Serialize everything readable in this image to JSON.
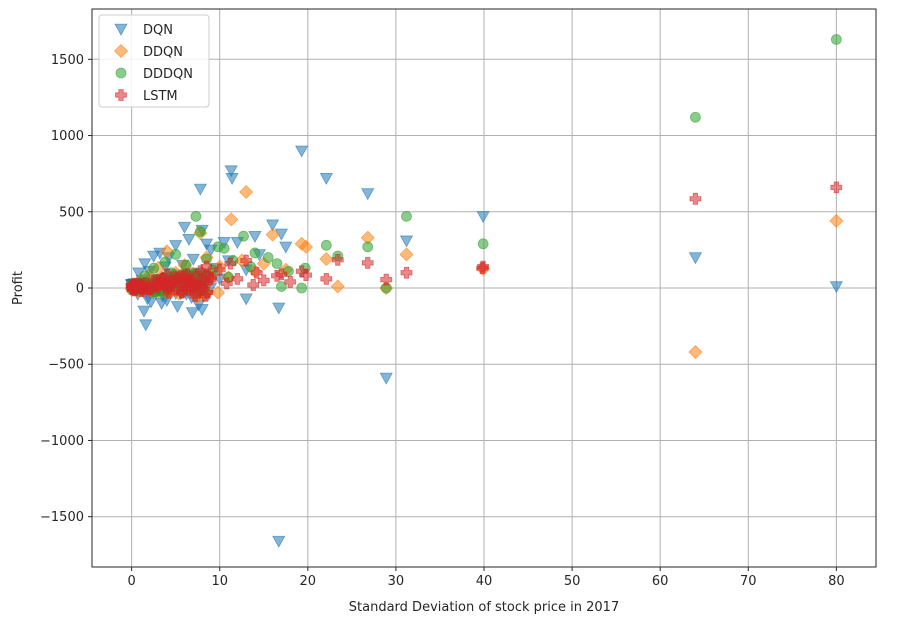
{
  "chart_data": {
    "type": "scatter",
    "title": "",
    "xlabel": "Standard Deviation of stock price in 2017",
    "ylabel": "Profit",
    "xlim": [
      -4.5,
      84.5
    ],
    "ylim": [
      -1830,
      1830
    ],
    "xticks": [
      0,
      10,
      20,
      30,
      40,
      50,
      60,
      70,
      80
    ],
    "xtick_labels": [
      "0",
      "10",
      "20",
      "30",
      "40",
      "50",
      "60",
      "70",
      "80"
    ],
    "yticks": [
      -1500,
      -1000,
      -500,
      0,
      500,
      1000,
      1500
    ],
    "ytick_labels": [
      "−1500",
      "−1000",
      "−500",
      "0",
      "500",
      "1000",
      "1500"
    ],
    "grid": true,
    "legend_position": "top-left",
    "series": [
      {
        "name": "DQN",
        "marker": "triangle-down",
        "color": "#1f77b4",
        "points": [
          [
            19.3,
            900
          ],
          [
            11.3,
            770
          ],
          [
            11.4,
            720
          ],
          [
            22.1,
            720
          ],
          [
            7.8,
            650
          ],
          [
            26.8,
            620
          ],
          [
            39.9,
            470
          ],
          [
            16.0,
            415
          ],
          [
            6.0,
            400
          ],
          [
            8.0,
            380
          ],
          [
            17.0,
            355
          ],
          [
            14.0,
            340
          ],
          [
            6.5,
            320
          ],
          [
            31.2,
            310
          ],
          [
            10.5,
            300
          ],
          [
            12.0,
            300
          ],
          [
            8.5,
            290
          ],
          [
            5.0,
            280
          ],
          [
            17.5,
            270
          ],
          [
            9.0,
            250
          ],
          [
            3.2,
            230
          ],
          [
            14.5,
            220
          ],
          [
            2.5,
            210
          ],
          [
            4.2,
            200
          ],
          [
            7.0,
            190
          ],
          [
            11.0,
            180
          ],
          [
            1.5,
            160
          ],
          [
            5.8,
            150
          ],
          [
            3.8,
            140
          ],
          [
            9.5,
            130
          ],
          [
            13.0,
            120
          ],
          [
            2.0,
            110
          ],
          [
            0.8,
            100
          ],
          [
            4.5,
            90
          ],
          [
            6.2,
            80
          ],
          [
            10.0,
            60
          ],
          [
            1.2,
            50
          ],
          [
            3.0,
            40
          ],
          [
            0.5,
            20
          ],
          [
            2.8,
            10
          ],
          [
            5.5,
            -10
          ],
          [
            8.2,
            -30
          ],
          [
            0.7,
            -40
          ],
          [
            3.5,
            -50
          ],
          [
            6.8,
            -60
          ],
          [
            1.8,
            -70
          ],
          [
            4.0,
            -80
          ],
          [
            2.2,
            -90
          ],
          [
            3.4,
            -100
          ],
          [
            7.6,
            -110
          ],
          [
            5.2,
            -120
          ],
          [
            16.7,
            -130
          ],
          [
            8.0,
            -140
          ],
          [
            1.4,
            -150
          ],
          [
            6.9,
            -160
          ],
          [
            1.6,
            -240
          ],
          [
            13.0,
            -70
          ],
          [
            64.0,
            200
          ],
          [
            80.0,
            10
          ],
          [
            28.9,
            -590
          ],
          [
            16.7,
            -1660
          ]
        ]
      },
      {
        "name": "DDQN",
        "marker": "diamond",
        "color": "#ff7f0e",
        "points": [
          [
            13.0,
            630
          ],
          [
            11.3,
            450
          ],
          [
            16.0,
            350
          ],
          [
            26.8,
            330
          ],
          [
            7.8,
            360
          ],
          [
            19.3,
            290
          ],
          [
            19.8,
            270
          ],
          [
            31.2,
            220
          ],
          [
            4.0,
            240
          ],
          [
            22.1,
            190
          ],
          [
            12.5,
            180
          ],
          [
            8.5,
            200
          ],
          [
            15.0,
            160
          ],
          [
            6.0,
            150
          ],
          [
            10.0,
            140
          ],
          [
            3.0,
            130
          ],
          [
            17.5,
            120
          ],
          [
            14.0,
            110
          ],
          [
            5.0,
            100
          ],
          [
            9.0,
            90
          ],
          [
            2.0,
            80
          ],
          [
            11.0,
            70
          ],
          [
            7.0,
            60
          ],
          [
            1.0,
            50
          ],
          [
            4.5,
            40
          ],
          [
            0.5,
            20
          ],
          [
            3.5,
            10
          ],
          [
            6.5,
            0
          ],
          [
            23.4,
            10
          ],
          [
            28.9,
            0
          ],
          [
            9.8,
            -30
          ],
          [
            2.5,
            -20
          ],
          [
            39.9,
            125
          ],
          [
            64.0,
            -420
          ],
          [
            80.0,
            440
          ]
        ]
      },
      {
        "name": "DDDQN",
        "marker": "circle",
        "color": "#2ca02c",
        "points": [
          [
            80.0,
            1630
          ],
          [
            64.0,
            1120
          ],
          [
            31.2,
            470
          ],
          [
            7.3,
            470
          ],
          [
            39.9,
            290
          ],
          [
            22.1,
            280
          ],
          [
            26.8,
            270
          ],
          [
            10.5,
            260
          ],
          [
            9.8,
            270
          ],
          [
            12.7,
            340
          ],
          [
            14.0,
            230
          ],
          [
            23.4,
            210
          ],
          [
            15.5,
            200
          ],
          [
            7.8,
            370
          ],
          [
            5.0,
            220
          ],
          [
            8.5,
            190
          ],
          [
            11.5,
            180
          ],
          [
            3.8,
            170
          ],
          [
            16.5,
            160
          ],
          [
            6.2,
            150
          ],
          [
            13.5,
            140
          ],
          [
            2.5,
            130
          ],
          [
            9.2,
            120
          ],
          [
            17.8,
            110
          ],
          [
            4.5,
            100
          ],
          [
            7.0,
            90
          ],
          [
            1.5,
            80
          ],
          [
            11.0,
            70
          ],
          [
            5.5,
            60
          ],
          [
            3.0,
            50
          ],
          [
            8.0,
            40
          ],
          [
            0.8,
            30
          ],
          [
            2.0,
            20
          ],
          [
            6.8,
            10
          ],
          [
            4.2,
            0
          ],
          [
            19.7,
            130
          ],
          [
            19.3,
            0
          ],
          [
            17.0,
            10
          ],
          [
            28.9,
            0
          ],
          [
            1.2,
            -10
          ],
          [
            3.2,
            -20
          ],
          [
            5.8,
            -30
          ]
        ]
      },
      {
        "name": "LSTM",
        "marker": "plus-filled",
        "color": "#d62728",
        "points": [
          [
            80.0,
            660
          ],
          [
            64.0,
            585
          ],
          [
            26.8,
            165
          ],
          [
            23.4,
            185
          ],
          [
            22.1,
            60
          ],
          [
            31.2,
            100
          ],
          [
            28.9,
            55
          ],
          [
            39.9,
            140
          ],
          [
            39.8,
            130
          ],
          [
            19.3,
            110
          ],
          [
            17.0,
            90
          ],
          [
            19.8,
            85
          ],
          [
            13.0,
            180
          ],
          [
            14.2,
            100
          ],
          [
            11.2,
            160
          ],
          [
            10.0,
            120
          ],
          [
            8.5,
            140
          ],
          [
            7.8,
            110
          ],
          [
            6.0,
            80
          ],
          [
            5.0,
            70
          ],
          [
            4.0,
            90
          ],
          [
            3.5,
            60
          ],
          [
            2.5,
            50
          ],
          [
            1.5,
            30
          ],
          [
            1.0,
            20
          ],
          [
            0.5,
            10
          ],
          [
            2.0,
            -10
          ],
          [
            3.0,
            0
          ],
          [
            4.5,
            40
          ],
          [
            6.5,
            50
          ],
          [
            9.0,
            70
          ],
          [
            12.0,
            60
          ],
          [
            15.0,
            50
          ],
          [
            16.5,
            80
          ],
          [
            18.0,
            40
          ],
          [
            7.2,
            30
          ],
          [
            5.5,
            20
          ],
          [
            8.0,
            10
          ],
          [
            10.8,
            30
          ],
          [
            13.8,
            20
          ]
        ]
      }
    ]
  }
}
